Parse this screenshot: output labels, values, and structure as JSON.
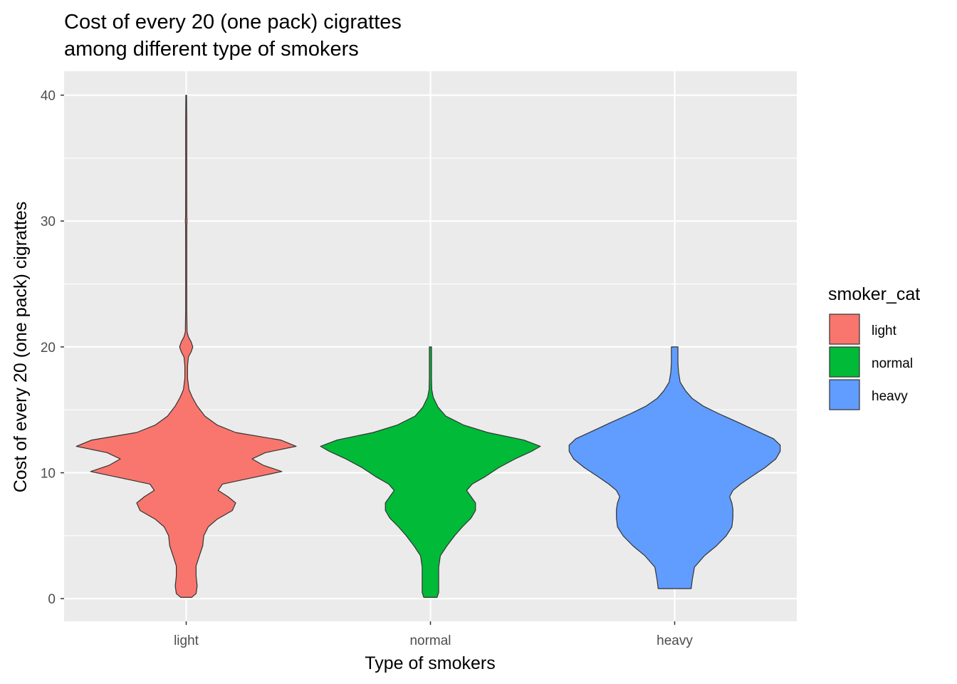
{
  "chart_data": {
    "type": "violin",
    "title_line1": "Cost of every 20 (one pack) cigrattes",
    "title_line2": "among different type of smokers",
    "xlabel": "Type of smokers",
    "ylabel": "Cost of every 20 (one pack) cigrattes",
    "categories": [
      "light",
      "normal",
      "heavy"
    ],
    "y_ticks": [
      0,
      10,
      20,
      30,
      40
    ],
    "ylim": [
      -1.8,
      41.9
    ],
    "grid": true,
    "legend": {
      "title": "smoker_cat",
      "position": "right",
      "items": [
        "light",
        "normal",
        "heavy"
      ]
    },
    "colors": {
      "light": "#F8766D",
      "normal": "#00BA38",
      "heavy": "#619CFF",
      "panel_bg": "#EBEBEB",
      "grid": "#FFFFFF",
      "outline": "#333333"
    },
    "series": [
      {
        "name": "light",
        "y_range": [
          0.1,
          40
        ],
        "density_profile": [
          [
            0.1,
            0.05
          ],
          [
            0.4,
            0.09
          ],
          [
            1,
            0.1
          ],
          [
            1.8,
            0.09
          ],
          [
            2.6,
            0.09
          ],
          [
            3.4,
            0.12
          ],
          [
            4.2,
            0.15
          ],
          [
            5,
            0.16
          ],
          [
            5.7,
            0.2
          ],
          [
            6.3,
            0.28
          ],
          [
            7,
            0.42
          ],
          [
            7.6,
            0.45
          ],
          [
            8.1,
            0.38
          ],
          [
            8.6,
            0.29
          ],
          [
            9.1,
            0.33
          ],
          [
            9.6,
            0.6
          ],
          [
            10.1,
            0.87
          ],
          [
            10.6,
            0.7
          ],
          [
            11.1,
            0.6
          ],
          [
            11.6,
            0.72
          ],
          [
            12.1,
            1.0
          ],
          [
            12.6,
            0.86
          ],
          [
            13.2,
            0.45
          ],
          [
            13.8,
            0.28
          ],
          [
            14.5,
            0.17
          ],
          [
            15.3,
            0.1
          ],
          [
            16,
            0.055
          ],
          [
            16.6,
            0.025
          ],
          [
            17.5,
            0.012
          ],
          [
            18.5,
            0.012
          ],
          [
            19.2,
            0.02
          ],
          [
            19.6,
            0.045
          ],
          [
            20,
            0.06
          ],
          [
            20.4,
            0.045
          ],
          [
            20.8,
            0.02
          ],
          [
            21.2,
            0.008
          ],
          [
            23,
            0.005
          ],
          [
            28,
            0.005
          ],
          [
            29.7,
            0.006
          ],
          [
            30,
            0.008
          ],
          [
            30.3,
            0.006
          ],
          [
            33,
            0.005
          ],
          [
            38,
            0.005
          ],
          [
            40,
            0.003
          ]
        ]
      },
      {
        "name": "normal",
        "y_range": [
          0.1,
          20
        ],
        "density_profile": [
          [
            0.1,
            0.06
          ],
          [
            0.5,
            0.075
          ],
          [
            1.5,
            0.075
          ],
          [
            2.5,
            0.075
          ],
          [
            3.4,
            0.09
          ],
          [
            4.2,
            0.15
          ],
          [
            5,
            0.22
          ],
          [
            5.7,
            0.29
          ],
          [
            6.4,
            0.37
          ],
          [
            7,
            0.41
          ],
          [
            7.6,
            0.41
          ],
          [
            8.1,
            0.37
          ],
          [
            8.6,
            0.33
          ],
          [
            9.1,
            0.38
          ],
          [
            9.7,
            0.5
          ],
          [
            10.4,
            0.62
          ],
          [
            11.1,
            0.77
          ],
          [
            11.7,
            0.92
          ],
          [
            12.1,
            1.0
          ],
          [
            12.6,
            0.85
          ],
          [
            13.2,
            0.52
          ],
          [
            13.8,
            0.3
          ],
          [
            14.5,
            0.14
          ],
          [
            15.2,
            0.07
          ],
          [
            16,
            0.025
          ],
          [
            16.6,
            0.012
          ],
          [
            17.5,
            0.01
          ],
          [
            18.5,
            0.01
          ],
          [
            19.5,
            0.01
          ],
          [
            20,
            0.01
          ]
        ]
      },
      {
        "name": "heavy",
        "y_range": [
          0.8,
          20
        ],
        "density_profile": [
          [
            0.8,
            0.15
          ],
          [
            1.5,
            0.16
          ],
          [
            2.5,
            0.18
          ],
          [
            3.4,
            0.27
          ],
          [
            4.2,
            0.38
          ],
          [
            5,
            0.47
          ],
          [
            5.7,
            0.52
          ],
          [
            6.4,
            0.53
          ],
          [
            7.1,
            0.53
          ],
          [
            7.6,
            0.52
          ],
          [
            8.1,
            0.5
          ],
          [
            8.6,
            0.53
          ],
          [
            9.1,
            0.6
          ],
          [
            9.7,
            0.7
          ],
          [
            10.4,
            0.82
          ],
          [
            11.1,
            0.92
          ],
          [
            11.7,
            0.96
          ],
          [
            12.2,
            0.96
          ],
          [
            12.7,
            0.9
          ],
          [
            13.3,
            0.75
          ],
          [
            14,
            0.58
          ],
          [
            14.7,
            0.4
          ],
          [
            15.3,
            0.26
          ],
          [
            15.9,
            0.16
          ],
          [
            16.5,
            0.1
          ],
          [
            17.2,
            0.05
          ],
          [
            18,
            0.035
          ],
          [
            18.7,
            0.03
          ],
          [
            19.3,
            0.03
          ],
          [
            20,
            0.03
          ]
        ]
      }
    ]
  }
}
